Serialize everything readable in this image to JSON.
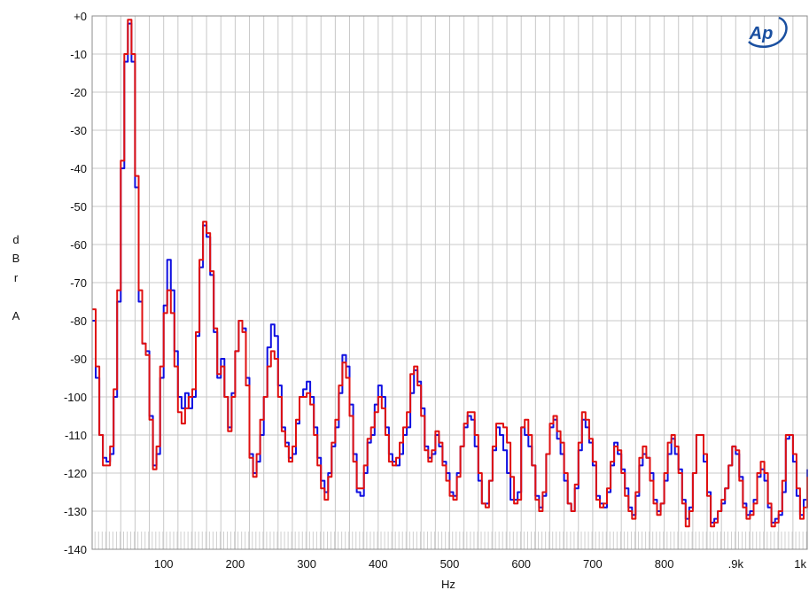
{
  "chart_data": {
    "type": "line",
    "title": "",
    "ylabel_chars": [
      "d",
      "B",
      "r",
      "",
      "A"
    ],
    "xlabel": "Hz",
    "xlim": [
      0,
      1000
    ],
    "ylim": [
      -140,
      0
    ],
    "grid": true,
    "x_ticks": [
      {
        "value": 100,
        "label": "100"
      },
      {
        "value": 200,
        "label": "200"
      },
      {
        "value": 300,
        "label": "300"
      },
      {
        "value": 400,
        "label": "400"
      },
      {
        "value": 500,
        "label": "500"
      },
      {
        "value": 600,
        "label": "600"
      },
      {
        "value": 700,
        "label": "700"
      },
      {
        "value": 800,
        "label": "800"
      },
      {
        "value": 900,
        "label": ".9k"
      },
      {
        "value": 1000,
        "label": "1k"
      }
    ],
    "y_ticks": [
      {
        "value": 0,
        "label": "+0"
      },
      {
        "value": -10,
        "label": "-10"
      },
      {
        "value": -20,
        "label": "-20"
      },
      {
        "value": -30,
        "label": "-30"
      },
      {
        "value": -40,
        "label": "-40"
      },
      {
        "value": -50,
        "label": "-50"
      },
      {
        "value": -60,
        "label": "-60"
      },
      {
        "value": -70,
        "label": "-70"
      },
      {
        "value": -80,
        "label": "-80"
      },
      {
        "value": -90,
        "label": "-90"
      },
      {
        "value": -100,
        "label": "-100"
      },
      {
        "value": -110,
        "label": "-110"
      },
      {
        "value": -120,
        "label": "-120"
      },
      {
        "value": -130,
        "label": "-130"
      },
      {
        "value": -140,
        "label": "-140"
      }
    ],
    "logo_text": "Ap",
    "logo_color": "#1a4fa0",
    "series": [
      {
        "color": "#1010e0",
        "x": [
          0,
          5,
          10,
          15,
          20,
          25,
          30,
          35,
          40,
          45,
          50,
          55,
          60,
          65,
          70,
          75,
          80,
          85,
          90,
          95,
          100,
          105,
          110,
          115,
          120,
          125,
          130,
          135,
          140,
          145,
          150,
          155,
          160,
          165,
          170,
          175,
          180,
          185,
          190,
          195,
          200,
          205,
          210,
          215,
          220,
          225,
          230,
          235,
          240,
          245,
          250,
          255,
          260,
          265,
          270,
          275,
          280,
          285,
          290,
          295,
          300,
          305,
          310,
          315,
          320,
          325,
          330,
          335,
          340,
          345,
          350,
          355,
          360,
          365,
          370,
          375,
          380,
          385,
          390,
          395,
          400,
          405,
          410,
          415,
          420,
          425,
          430,
          435,
          440,
          445,
          450,
          455,
          460,
          465,
          470,
          475,
          480,
          485,
          490,
          495,
          500,
          505,
          510,
          515,
          520,
          525,
          530,
          535,
          540,
          545,
          550,
          555,
          560,
          565,
          570,
          575,
          580,
          585,
          590,
          595,
          600,
          605,
          610,
          615,
          620,
          625,
          630,
          635,
          640,
          645,
          650,
          655,
          660,
          665,
          670,
          675,
          680,
          685,
          690,
          695,
          700,
          705,
          710,
          715,
          720,
          725,
          730,
          735,
          740,
          745,
          750,
          755,
          760,
          765,
          770,
          775,
          780,
          785,
          790,
          795,
          800,
          805,
          810,
          815,
          820,
          825,
          830,
          835,
          840,
          845,
          850,
          855,
          860,
          865,
          870,
          875,
          880,
          885,
          890,
          895,
          900,
          905,
          910,
          915,
          920,
          925,
          930,
          935,
          940,
          945,
          950,
          955,
          960,
          965,
          970,
          975,
          980,
          985,
          990,
          995,
          1000
        ],
        "y": [
          -80,
          -95,
          -110,
          -116,
          -117,
          -115,
          -100,
          -75,
          -40,
          -12,
          -2,
          -12,
          -45,
          -75,
          -86,
          -88,
          -105,
          -118,
          -115,
          -95,
          -76,
          -64,
          -72,
          -88,
          -100,
          -103,
          -99,
          -103,
          -100,
          -84,
          -66,
          -55,
          -58,
          -68,
          -83,
          -95,
          -90,
          -100,
          -108,
          -99,
          -88,
          -80,
          -82,
          -95,
          -115,
          -120,
          -117,
          -110,
          -100,
          -87,
          -81,
          -84,
          -97,
          -108,
          -112,
          -116,
          -115,
          -107,
          -100,
          -98,
          -96,
          -100,
          -108,
          -116,
          -122,
          -125,
          -120,
          -113,
          -108,
          -99,
          -89,
          -92,
          -102,
          -115,
          -125,
          -126,
          -120,
          -112,
          -110,
          -102,
          -97,
          -100,
          -108,
          -115,
          -117,
          -118,
          -115,
          -110,
          -108,
          -99,
          -93,
          -96,
          -103,
          -113,
          -116,
          -115,
          -110,
          -113,
          -117,
          -120,
          -125,
          -126,
          -120,
          -113,
          -108,
          -105,
          -106,
          -113,
          -122,
          -128,
          -128,
          -122,
          -114,
          -108,
          -110,
          -114,
          -120,
          -127,
          -127,
          -125,
          -108,
          -110,
          -113,
          -118,
          -126,
          -129,
          -126,
          -115,
          -108,
          -106,
          -111,
          -115,
          -122,
          -128,
          -130,
          -124,
          -114,
          -106,
          -108,
          -112,
          -118,
          -126,
          -128,
          -129,
          -125,
          -118,
          -112,
          -115,
          -119,
          -124,
          -129,
          -131,
          -126,
          -118,
          -115,
          -116,
          -120,
          -127,
          -130,
          -128,
          -122,
          -115,
          -111,
          -115,
          -119,
          -127,
          -132,
          -129,
          -120,
          -110,
          -110,
          -117,
          -125,
          -133,
          -132,
          -130,
          -128,
          -124,
          -118,
          -113,
          -115,
          -121,
          -128,
          -131,
          -130,
          -127,
          -121,
          -119,
          -122,
          -129,
          -133,
          -132,
          -131,
          -125,
          -111,
          -110,
          -117,
          -126,
          -131,
          -127,
          -119
        ]
      },
      {
        "color": "#e01010",
        "x": [
          0,
          5,
          10,
          15,
          20,
          25,
          30,
          35,
          40,
          45,
          50,
          55,
          60,
          65,
          70,
          75,
          80,
          85,
          90,
          95,
          100,
          105,
          110,
          115,
          120,
          125,
          130,
          135,
          140,
          145,
          150,
          155,
          160,
          165,
          170,
          175,
          180,
          185,
          190,
          195,
          200,
          205,
          210,
          215,
          220,
          225,
          230,
          235,
          240,
          245,
          250,
          255,
          260,
          265,
          270,
          275,
          280,
          285,
          290,
          295,
          300,
          305,
          310,
          315,
          320,
          325,
          330,
          335,
          340,
          345,
          350,
          355,
          360,
          365,
          370,
          375,
          380,
          385,
          390,
          395,
          400,
          405,
          410,
          415,
          420,
          425,
          430,
          435,
          440,
          445,
          450,
          455,
          460,
          465,
          470,
          475,
          480,
          485,
          490,
          495,
          500,
          505,
          510,
          515,
          520,
          525,
          530,
          535,
          540,
          545,
          550,
          555,
          560,
          565,
          570,
          575,
          580,
          585,
          590,
          595,
          600,
          605,
          610,
          615,
          620,
          625,
          630,
          635,
          640,
          645,
          650,
          655,
          660,
          665,
          670,
          675,
          680,
          685,
          690,
          695,
          700,
          705,
          710,
          715,
          720,
          725,
          730,
          735,
          740,
          745,
          750,
          755,
          760,
          765,
          770,
          775,
          780,
          785,
          790,
          795,
          800,
          805,
          810,
          815,
          820,
          825,
          830,
          835,
          840,
          845,
          850,
          855,
          860,
          865,
          870,
          875,
          880,
          885,
          890,
          895,
          900,
          905,
          910,
          915,
          920,
          925,
          930,
          935,
          940,
          945,
          950,
          955,
          960,
          965,
          970,
          975,
          980,
          985,
          990,
          995,
          1000
        ],
        "y": [
          -77,
          -92,
          -110,
          -118,
          -118,
          -113,
          -98,
          -72,
          -38,
          -10,
          -1,
          -10,
          -42,
          -72,
          -86,
          -89,
          -106,
          -119,
          -113,
          -92,
          -78,
          -72,
          -78,
          -92,
          -104,
          -107,
          -103,
          -100,
          -98,
          -83,
          -64,
          -54,
          -57,
          -67,
          -82,
          -94,
          -92,
          -100,
          -109,
          -100,
          -88,
          -80,
          -83,
          -97,
          -116,
          -121,
          -115,
          -106,
          -100,
          -92,
          -88,
          -90,
          -100,
          -109,
          -113,
          -117,
          -113,
          -106,
          -100,
          -100,
          -99,
          -102,
          -110,
          -118,
          -124,
          -127,
          -121,
          -112,
          -106,
          -97,
          -91,
          -95,
          -105,
          -117,
          -124,
          -124,
          -118,
          -111,
          -108,
          -104,
          -100,
          -103,
          -110,
          -117,
          -118,
          -116,
          -112,
          -108,
          -104,
          -94,
          -92,
          -97,
          -105,
          -114,
          -117,
          -114,
          -109,
          -112,
          -118,
          -122,
          -126,
          -127,
          -121,
          -113,
          -107,
          -104,
          -104,
          -110,
          -120,
          -128,
          -129,
          -122,
          -113,
          -107,
          -107,
          -108,
          -112,
          -121,
          -128,
          -127,
          -108,
          -106,
          -110,
          -118,
          -127,
          -130,
          -125,
          -115,
          -107,
          -105,
          -109,
          -112,
          -120,
          -128,
          -130,
          -123,
          -112,
          -104,
          -106,
          -111,
          -117,
          -127,
          -129,
          -128,
          -124,
          -117,
          -113,
          -114,
          -120,
          -126,
          -130,
          -132,
          -125,
          -116,
          -113,
          -116,
          -122,
          -128,
          -131,
          -128,
          -120,
          -112,
          -110,
          -113,
          -120,
          -128,
          -134,
          -130,
          -120,
          -110,
          -110,
          -115,
          -126,
          -134,
          -133,
          -130,
          -127,
          -124,
          -118,
          -113,
          -114,
          -122,
          -129,
          -132,
          -131,
          -128,
          -120,
          -117,
          -120,
          -128,
          -134,
          -133,
          -130,
          -122,
          -110,
          -110,
          -115,
          -124,
          -132,
          -129,
          -121
        ]
      }
    ]
  }
}
